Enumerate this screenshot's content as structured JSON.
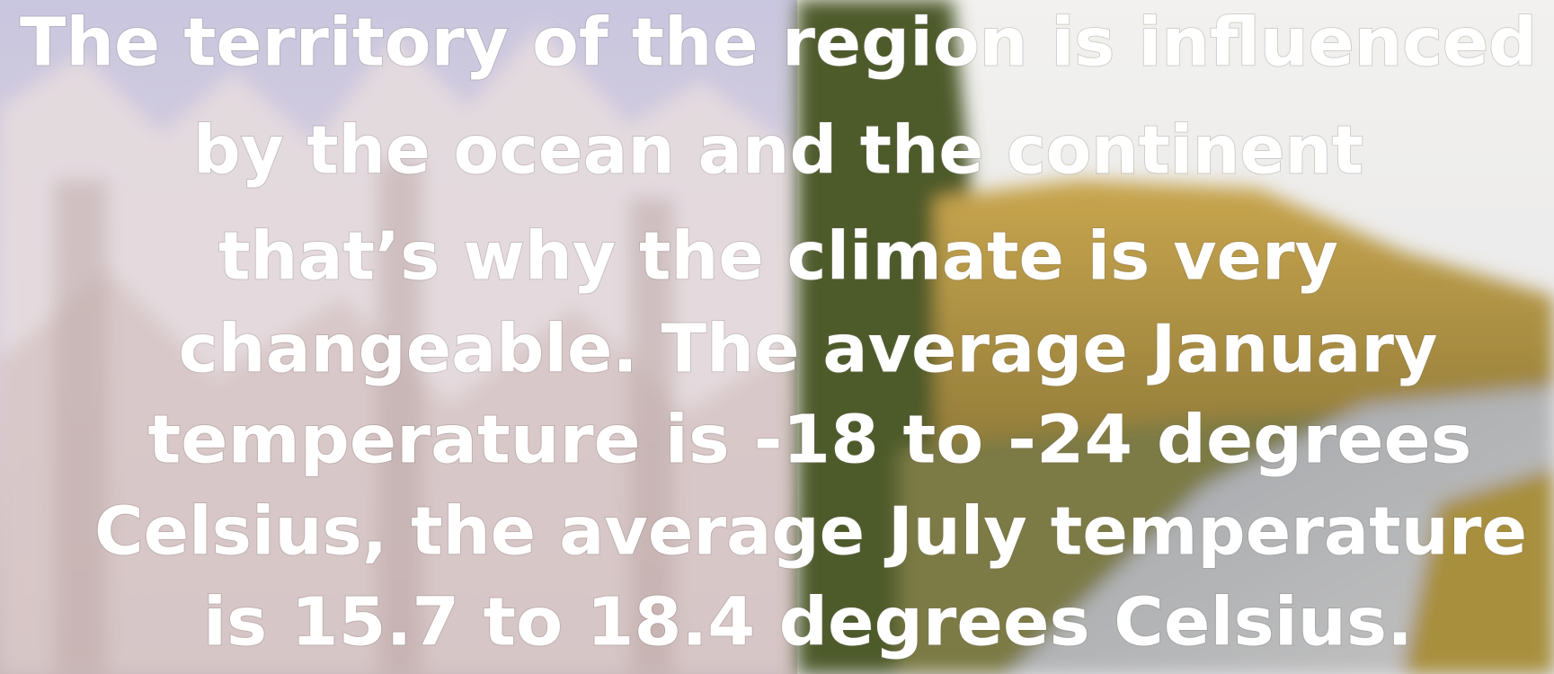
{
  "slide": {
    "lines": [
      "The territory of the region is influenced",
      "by the ocean and the continent",
      "that’s why the climate is very",
      "changeable. The average January",
      "temperature is -18 to -24 degrees",
      "Celsius, the average July temperature",
      "is 15.7 to 18.4 degrees Celsius."
    ]
  }
}
